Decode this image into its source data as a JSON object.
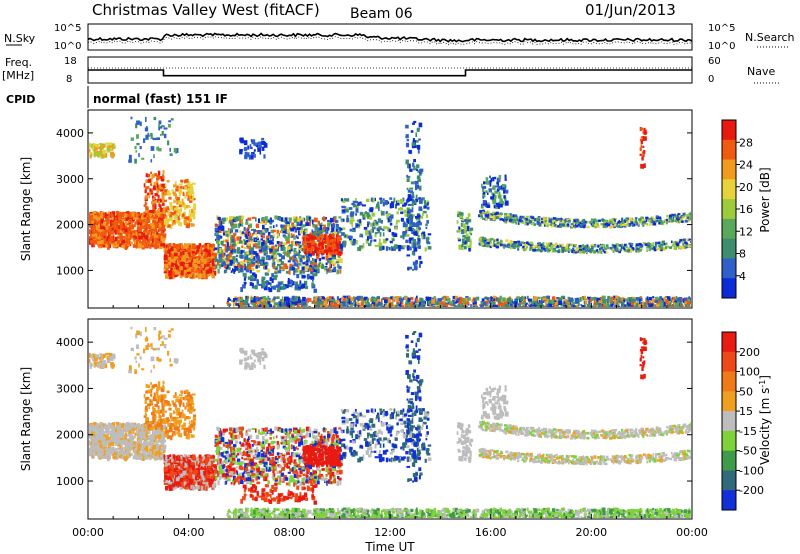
{
  "header": {
    "station": "Christmas Valley West (fitACF)",
    "beam": "Beam 06",
    "date": "01/Jun/2013"
  },
  "top_panels": {
    "nsky_label": "N.Sky",
    "nsky_ticks": [
      "10^5",
      "10^0"
    ],
    "nsearch_label": "N.Search",
    "nsearch_ticks": [
      "10^5",
      "10^0"
    ],
    "freq_label": "Freq.",
    "freq_unit": "[MHz]",
    "freq_ticks": [
      "18",
      "8"
    ],
    "nave_label": "Nave",
    "nave_ticks": [
      "60",
      "0"
    ],
    "cpid_label": "CPID",
    "cpid_value": "normal (fast) 151 IF"
  },
  "x_axis": {
    "label": "Time UT",
    "ticks": [
      "00:00",
      "04:00",
      "08:00",
      "12:00",
      "16:00",
      "20:00",
      "00:00"
    ]
  },
  "colors": {
    "power_scale": [
      "#0b2bd6",
      "#2f5fc8",
      "#3d8d6f",
      "#5aa85a",
      "#9ccc3c",
      "#e6d23a",
      "#f29a1e",
      "#f05a10",
      "#e81a10"
    ],
    "velocity_scale": [
      "#1230d8",
      "#2e6a7a",
      "#3f9a4a",
      "#7fd23a",
      "#bdbdbd",
      "#f0a020",
      "#f07a18",
      "#ee4818",
      "#e81a12"
    ]
  },
  "chart_data": [
    {
      "type": "line",
      "name": "N.Sky / N.Search",
      "x": [
        "00:00",
        "04:00",
        "08:00",
        "12:00",
        "16:00",
        "20:00",
        "00:00"
      ],
      "ylim_labels": [
        "10^0",
        "10^5"
      ]
    },
    {
      "type": "line",
      "name": "Freq. / Nave",
      "series": [
        {
          "name": "Freq.",
          "x_hours": [
            0,
            3,
            3,
            15,
            15,
            24
          ],
          "values": [
            13,
            13,
            10.8,
            10.8,
            13,
            13
          ]
        }
      ],
      "ylim": [
        8,
        18
      ]
    },
    {
      "type": "heatmap",
      "quantity": "Power",
      "unit": "dB",
      "xlabel": "Time UT",
      "ylabel": "Slant Range [km]",
      "xlim_hours": [
        0,
        24
      ],
      "ylim": [
        180,
        4500
      ],
      "yticks": [
        1000,
        2000,
        3000,
        4000
      ],
      "colorbar_ticks": [
        4,
        8,
        12,
        16,
        20,
        24,
        28
      ],
      "colorbar_title": "Power [dB]"
    },
    {
      "type": "heatmap",
      "quantity": "Velocity",
      "unit": "m s^-1",
      "xlabel": "Time UT",
      "ylabel": "Slant Range [km]",
      "xlim_hours": [
        0,
        24
      ],
      "ylim": [
        180,
        4500
      ],
      "yticks": [
        1000,
        2000,
        3000,
        4000
      ],
      "colorbar_ticks": [
        200,
        100,
        50,
        15,
        -15,
        -50,
        -100,
        -200
      ],
      "colorbar_title": "Velocity [m s^-1]"
    }
  ]
}
